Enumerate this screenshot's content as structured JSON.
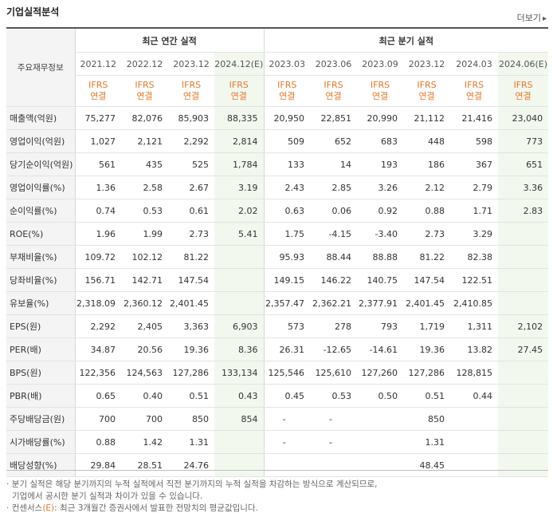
{
  "title": "기업실적분석",
  "more_label": "더보기",
  "more_arrow": "▸",
  "row_header": "주요재무정보",
  "groups": {
    "annual": "최근 연간 실적",
    "quarter": "최근 분기 실적"
  },
  "periods": [
    "2021.12",
    "2022.12",
    "2023.12",
    "2024.12(E)",
    "2023.03",
    "2023.06",
    "2023.09",
    "2023.12",
    "2024.03",
    "2024.06(E)"
  ],
  "ifrs_line1": "IFRS",
  "ifrs_line2": "연결",
  "rows": [
    {
      "label": "매출액(억원)",
      "values": [
        "75,277",
        "82,076",
        "85,903",
        "88,335",
        "20,950",
        "22,851",
        "20,990",
        "21,112",
        "21,416",
        "23,040"
      ]
    },
    {
      "label": "영업이익(억원)",
      "values": [
        "1,027",
        "2,121",
        "2,292",
        "2,814",
        "509",
        "652",
        "683",
        "448",
        "598",
        "773"
      ]
    },
    {
      "label": "당기순이익(억원)",
      "values": [
        "561",
        "435",
        "525",
        "1,784",
        "133",
        "14",
        "193",
        "186",
        "367",
        "651"
      ]
    },
    {
      "label": "영업이익률(%)",
      "values": [
        "1.36",
        "2.58",
        "2.67",
        "3.19",
        "2.43",
        "2.85",
        "3.26",
        "2.12",
        "2.79",
        "3.36"
      ]
    },
    {
      "label": "순이익률(%)",
      "values": [
        "0.74",
        "0.53",
        "0.61",
        "2.02",
        "0.63",
        "0.06",
        "0.92",
        "0.88",
        "1.71",
        "2.83"
      ]
    },
    {
      "label": "ROE(%)",
      "values": [
        "1.96",
        "1.99",
        "2.73",
        "5.41",
        "1.75",
        "-4.15",
        "-3.40",
        "2.73",
        "3.29",
        ""
      ]
    },
    {
      "label": "부채비율(%)",
      "values": [
        "109.72",
        "102.12",
        "81.22",
        "",
        "95.93",
        "88.44",
        "88.88",
        "81.22",
        "82.38",
        ""
      ]
    },
    {
      "label": "당좌비율(%)",
      "values": [
        "156.71",
        "142.71",
        "147.54",
        "",
        "149.15",
        "146.22",
        "140.75",
        "147.54",
        "122.51",
        ""
      ]
    },
    {
      "label": "유보율(%)",
      "values": [
        "2,318.09",
        "2,360.12",
        "2,401.45",
        "",
        "2,357.47",
        "2,362.21",
        "2,377.91",
        "2,401.45",
        "2,410.85",
        ""
      ]
    },
    {
      "label": "EPS(원)",
      "values": [
        "2,292",
        "2,405",
        "3,363",
        "6,903",
        "573",
        "278",
        "793",
        "1,719",
        "1,311",
        "2,102"
      ]
    },
    {
      "label": "PER(배)",
      "values": [
        "34.87",
        "20.56",
        "19.36",
        "8.36",
        "26.31",
        "-12.65",
        "-14.61",
        "19.36",
        "13.82",
        "27.45"
      ]
    },
    {
      "label": "BPS(원)",
      "values": [
        "122,356",
        "124,563",
        "127,286",
        "133,134",
        "125,546",
        "125,610",
        "127,260",
        "127,286",
        "128,815",
        ""
      ]
    },
    {
      "label": "PBR(배)",
      "values": [
        "0.65",
        "0.40",
        "0.51",
        "0.43",
        "0.45",
        "0.53",
        "0.50",
        "0.51",
        "0.44",
        ""
      ]
    },
    {
      "label": "주당배당금(원)",
      "values": [
        "700",
        "700",
        "850",
        "854",
        "-",
        "-",
        "",
        "850",
        "",
        ""
      ]
    },
    {
      "label": "시가배당률(%)",
      "values": [
        "0.88",
        "1.42",
        "1.31",
        "",
        "-",
        "-",
        "",
        "1.31",
        "",
        ""
      ]
    },
    {
      "label": "배당성향(%)",
      "values": [
        "29.84",
        "28.51",
        "24.76",
        "",
        "",
        "",
        "",
        "48.45",
        "",
        ""
      ]
    }
  ],
  "notes": {
    "line1": "분기 실적은 해당 분기까지의 누적 실적에서 직전 분기까지의 누적 실적을 차감하는 방식으로 계산되므로,",
    "line2": "기업에서 공시한 분기 실적과 차이가 있을 수 있습니다.",
    "line3_prefix": "컨센서스",
    "line3_em": "(E)",
    "line3_suffix": ": 최근 3개월간 증권사에서 발표한 전망치의 평균값입니다."
  }
}
